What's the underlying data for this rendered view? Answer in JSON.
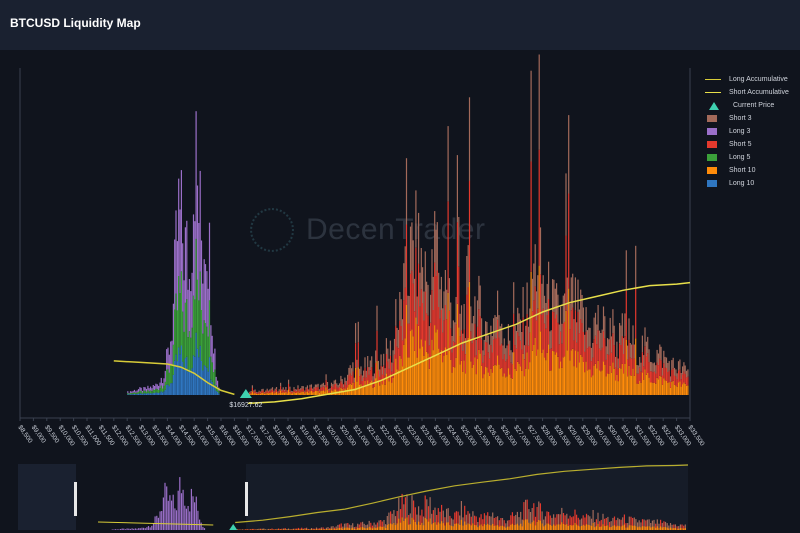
{
  "header": {
    "title": "BTCUSD Liquidity Map"
  },
  "watermark": {
    "text": "DecenTrader"
  },
  "current_price": {
    "label": "$16927.62",
    "value": 16927.62
  },
  "legend": [
    {
      "label": "Long Accumulative",
      "type": "line",
      "color": "#d8cc38"
    },
    {
      "label": "Short Accumulative",
      "type": "line",
      "color": "#e8e04a"
    },
    {
      "label": "Current Price",
      "type": "triangle",
      "color": "#3fd1b0"
    },
    {
      "label": "Short 3",
      "type": "bar",
      "color": "#a36a5a"
    },
    {
      "label": "Long 3",
      "type": "bar",
      "color": "#9b6fc9"
    },
    {
      "label": "Short 5",
      "type": "bar",
      "color": "#e4392d"
    },
    {
      "label": "Long 5",
      "type": "bar",
      "color": "#3ba03a"
    },
    {
      "label": "Short 10",
      "type": "bar",
      "color": "#ff8c0a"
    },
    {
      "label": "Long 10",
      "type": "bar",
      "color": "#2f76c0"
    }
  ],
  "chart_data": {
    "type": "bar",
    "stacked": true,
    "x_tick_labels": [
      "$8,500",
      "$9,000",
      "$9,500",
      "$10,000",
      "$10,500",
      "$11,000",
      "$11,500",
      "$12,000",
      "$12,500",
      "$13,000",
      "$13,500",
      "$14,000",
      "$14,500",
      "$15,000",
      "$15,500",
      "$16,000",
      "$16,500",
      "$17,000",
      "$17,500",
      "$18,000",
      "$18,500",
      "$19,000",
      "$19,500",
      "$20,000",
      "$20,500",
      "$21,000",
      "$21,500",
      "$22,000",
      "$22,500",
      "$23,000",
      "$23,500",
      "$24,000",
      "$24,500",
      "$25,000",
      "$25,500",
      "$26,000",
      "$26,500",
      "$27,000",
      "$27,500",
      "$28,000",
      "$28,500",
      "$29,000",
      "$29,500",
      "$30,000",
      "$30,500",
      "$31,000",
      "$31,500",
      "$32,000",
      "$32,500",
      "$33,000",
      "$33,500"
    ],
    "xlim": [
      8500,
      33500
    ],
    "ylim": [
      0,
      100
    ],
    "current_price": 16927.62,
    "long_profile": [
      [
        12500,
        1
      ],
      [
        12700,
        1.5
      ],
      [
        12900,
        2
      ],
      [
        13100,
        2
      ],
      [
        13300,
        2.5
      ],
      [
        13500,
        3
      ],
      [
        13600,
        4
      ],
      [
        13700,
        5
      ],
      [
        13800,
        7
      ],
      [
        13900,
        9
      ],
      [
        14000,
        14
      ],
      [
        14100,
        20
      ],
      [
        14200,
        30
      ],
      [
        14300,
        48
      ],
      [
        14400,
        62
      ],
      [
        14500,
        58
      ],
      [
        14600,
        52
      ],
      [
        14700,
        49
      ],
      [
        14800,
        40
      ],
      [
        14900,
        62
      ],
      [
        15000,
        88
      ],
      [
        15100,
        70
      ],
      [
        15200,
        60
      ],
      [
        15300,
        50
      ],
      [
        15400,
        62
      ],
      [
        15500,
        56
      ],
      [
        15600,
        40
      ],
      [
        15700,
        22
      ],
      [
        15800,
        8
      ],
      [
        15900,
        3
      ]
    ],
    "long_mix": {
      "long_3": 0.45,
      "long_5": 0.33,
      "long_10": 0.22
    },
    "short_profile": [
      [
        17000,
        1
      ],
      [
        17300,
        1.5
      ],
      [
        17600,
        1.5
      ],
      [
        17900,
        2
      ],
      [
        18200,
        2
      ],
      [
        18500,
        2
      ],
      [
        18800,
        2.5
      ],
      [
        19100,
        2.5
      ],
      [
        19400,
        3
      ],
      [
        19700,
        3
      ],
      [
        20000,
        3.5
      ],
      [
        20300,
        4
      ],
      [
        20600,
        6
      ],
      [
        20900,
        10
      ],
      [
        21200,
        9
      ],
      [
        21500,
        10
      ],
      [
        21800,
        12
      ],
      [
        22100,
        14
      ],
      [
        22400,
        16
      ],
      [
        22700,
        30
      ],
      [
        23000,
        45
      ],
      [
        23200,
        52
      ],
      [
        23400,
        48
      ],
      [
        23600,
        42
      ],
      [
        23800,
        35
      ],
      [
        24000,
        55
      ],
      [
        24200,
        38
      ],
      [
        24400,
        40
      ],
      [
        24600,
        30
      ],
      [
        24800,
        28
      ],
      [
        25000,
        25
      ],
      [
        25200,
        38
      ],
      [
        25400,
        32
      ],
      [
        25600,
        30
      ],
      [
        25800,
        24
      ],
      [
        26000,
        22
      ],
      [
        26200,
        28
      ],
      [
        26400,
        30
      ],
      [
        26600,
        20
      ],
      [
        26800,
        18
      ],
      [
        27000,
        22
      ],
      [
        27200,
        26
      ],
      [
        27400,
        30
      ],
      [
        27600,
        42
      ],
      [
        27800,
        48
      ],
      [
        28000,
        38
      ],
      [
        28200,
        34
      ],
      [
        28400,
        30
      ],
      [
        28600,
        28
      ],
      [
        28800,
        30
      ],
      [
        29000,
        35
      ],
      [
        29200,
        30
      ],
      [
        29400,
        28
      ],
      [
        29600,
        24
      ],
      [
        29800,
        22
      ],
      [
        30000,
        26
      ],
      [
        30200,
        24
      ],
      [
        30400,
        22
      ],
      [
        30600,
        20
      ],
      [
        30800,
        18
      ],
      [
        31000,
        22
      ],
      [
        31200,
        20
      ],
      [
        31400,
        18
      ],
      [
        31600,
        16
      ],
      [
        31800,
        17
      ],
      [
        32000,
        15
      ],
      [
        32200,
        14
      ],
      [
        32400,
        14
      ],
      [
        32600,
        12
      ],
      [
        32800,
        10
      ],
      [
        33000,
        10
      ],
      [
        33200,
        9
      ],
      [
        33400,
        8
      ]
    ],
    "short_mix": {
      "short_10": 0.38,
      "short_5": 0.34,
      "short_3": 0.28
    },
    "long_accumulative": [
      [
        12000,
        11
      ],
      [
        13000,
        10.5
      ],
      [
        14000,
        10
      ],
      [
        14500,
        9
      ],
      [
        15000,
        7
      ],
      [
        15500,
        4
      ],
      [
        16000,
        1.5
      ],
      [
        16500,
        0.2
      ]
    ],
    "short_accumulative": [
      [
        17000,
        0.5
      ],
      [
        18000,
        1
      ],
      [
        19000,
        2
      ],
      [
        20000,
        3.5
      ],
      [
        21000,
        5
      ],
      [
        22000,
        8
      ],
      [
        23000,
        12
      ],
      [
        24000,
        16
      ],
      [
        25000,
        20
      ],
      [
        26000,
        23
      ],
      [
        27000,
        26
      ],
      [
        28000,
        30
      ],
      [
        29000,
        33
      ],
      [
        30000,
        35
      ],
      [
        31000,
        37
      ],
      [
        32000,
        38.5
      ],
      [
        33000,
        39
      ],
      [
        33500,
        39.5
      ]
    ]
  }
}
